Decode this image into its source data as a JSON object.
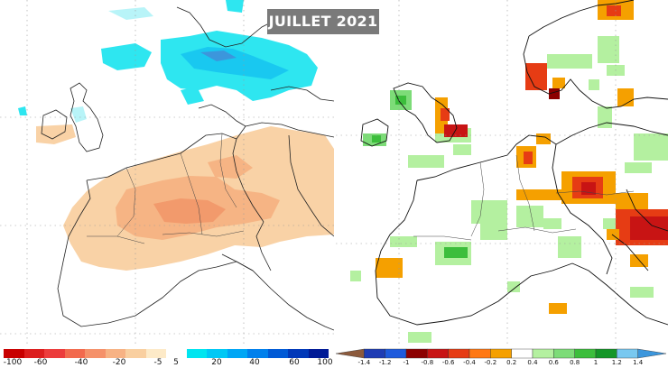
{
  "title": "JUILLET 2021",
  "left_panel": {
    "name": "precipitation-anomaly-map",
    "colorbar": {
      "colors": [
        "#c80000",
        "#dc1e1e",
        "#ec3c3c",
        "#f26a4e",
        "#f5916a",
        "#f7b284",
        "#f9cfa0",
        "#fdeac8",
        "#ffffff",
        "#00e5f0",
        "#00c8f5",
        "#00a6f5",
        "#0080ec",
        "#005ad6",
        "#0038b8",
        "#001a96"
      ],
      "tick_labels": [
        "-100",
        "-60",
        "-40",
        "-20",
        "-5",
        "5",
        "20",
        "40",
        "60",
        "100"
      ]
    }
  },
  "right_panel": {
    "name": "temperature-anomaly-map",
    "colorbar": {
      "colors": [
        "#8c5a3c",
        "#1e3cb4",
        "#1e5adc",
        "#8c0000",
        "#c81414",
        "#e63c14",
        "#ff7814",
        "#f5a000",
        "#ffffff",
        "#b4f0a0",
        "#7ddc78",
        "#3cbe3c",
        "#149628",
        "#78c8f0",
        "#3c96dc"
      ],
      "tick_labels": [
        "-1.4",
        "-1.2",
        "-1",
        "-0.8",
        "-0.6",
        "-0.4",
        "-0.2",
        "0.2",
        "0.4",
        "0.6",
        "0.8",
        "1",
        "1.2",
        "1.4"
      ]
    }
  }
}
